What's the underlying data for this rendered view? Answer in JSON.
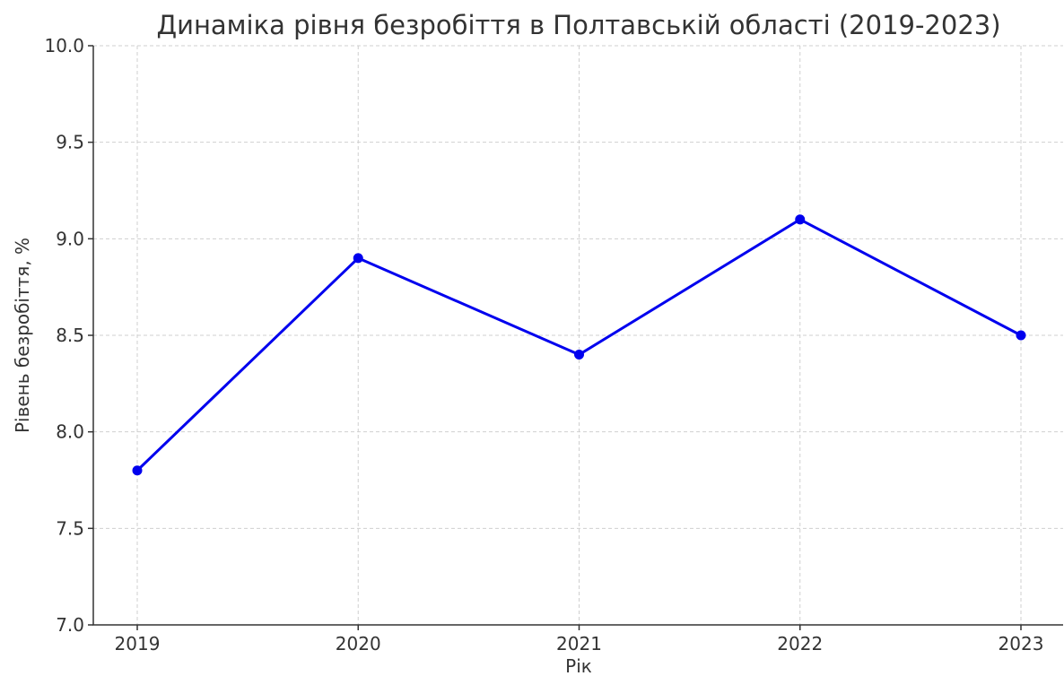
{
  "chart_data": {
    "type": "line",
    "title": "Динаміка рівня безробіття в Полтавській області (2019-2023)",
    "xlabel": "Рік",
    "ylabel": "Рівень безробіття, %",
    "x": [
      "2019",
      "2020",
      "2021",
      "2022",
      "2023"
    ],
    "series": [
      {
        "values": [
          7.8,
          8.9,
          8.4,
          9.1,
          8.5
        ],
        "color": "#0000ee",
        "marker": "circle"
      }
    ],
    "ylim": [
      7.0,
      10.0
    ],
    "yticks": [
      "7.0",
      "7.5",
      "8.0",
      "8.5",
      "9.0",
      "9.5",
      "10.0"
    ],
    "grid": true
  }
}
